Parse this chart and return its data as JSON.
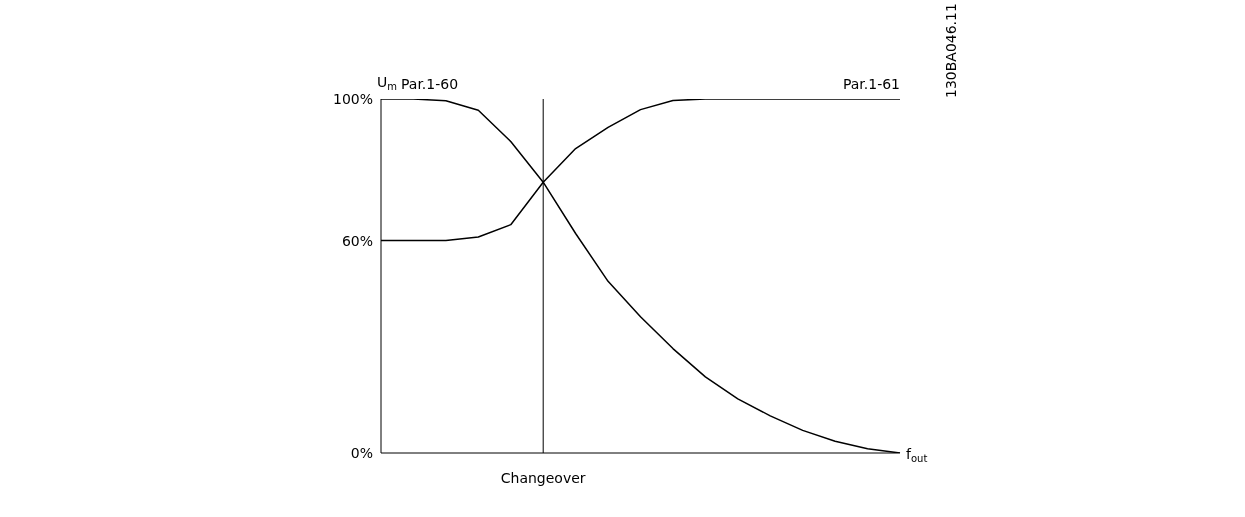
{
  "chart_data": {
    "type": "line",
    "ylabel": "U$_{m}$",
    "xlabel": "f$_{out}$",
    "categories": [
      null,
      null,
      null,
      null,
      null,
      "Changeover",
      null,
      null,
      null,
      null,
      null,
      null,
      null,
      null,
      null,
      null,
      null
    ],
    "ylim": [
      0,
      100
    ],
    "yticks": [
      {
        "value": 0,
        "label": "0%"
      },
      {
        "value": 60,
        "label": "60%"
      },
      {
        "value": 100,
        "label": "100%"
      }
    ],
    "marker": "none",
    "line_style": "solid",
    "series": [
      {
        "name": "Par.1-60",
        "color": "#000000",
        "values": [
          100,
          100,
          99.5,
          96.8,
          88,
          76.5,
          62,
          48.5,
          38.5,
          29.5,
          21.5,
          15.3,
          10.5,
          6.4,
          3.3,
          1.2,
          0
        ]
      },
      {
        "name": "Par.1-61",
        "color": "#000000",
        "values": [
          60,
          60,
          60,
          61,
          64.5,
          76.5,
          86,
          92,
          97,
          99.6,
          100,
          100,
          100,
          100,
          100,
          100,
          100
        ]
      }
    ],
    "ref_lines": [
      {
        "axis": "x",
        "value": "Changeover",
        "color": "#000000"
      }
    ],
    "annotations": [
      "130BA046.11"
    ]
  }
}
